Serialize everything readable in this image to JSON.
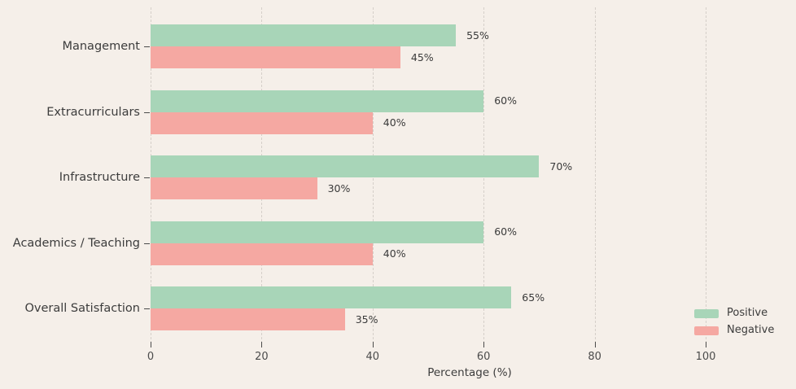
{
  "chart_data": {
    "type": "bar",
    "orientation": "horizontal",
    "categories": [
      "Management",
      "Extracurriculars",
      "Infrastructure",
      "Academics / Teaching",
      "Overall Satisfaction"
    ],
    "series": [
      {
        "name": "Positive",
        "color": "#a8d5b8",
        "values": [
          55,
          60,
          70,
          60,
          65
        ]
      },
      {
        "name": "Negative",
        "color": "#f5a8a2",
        "values": [
          45,
          40,
          30,
          40,
          35
        ]
      }
    ],
    "value_label_suffix": "%",
    "xlabel": "Percentage (%)",
    "xticks": [
      0,
      20,
      40,
      60,
      80,
      100
    ],
    "xlim": [
      0,
      114.8
    ],
    "grid": "vertical-dashed",
    "legend_position": "lower-right",
    "legend_frame": false,
    "background_color": "#f5efe9",
    "gridline_color": "#d5cfc9"
  }
}
